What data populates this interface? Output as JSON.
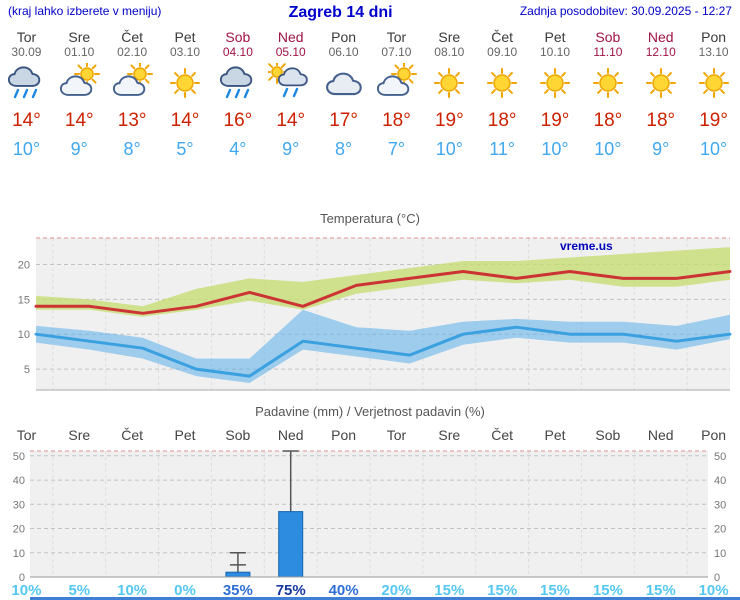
{
  "header": {
    "left_note": "(kraj lahko izberete v meniju)",
    "title": "Zagreb 14 dni",
    "updated": "Zadnja posodobitev: 30.09.2025 - 12:27"
  },
  "watermark": "vreme.us",
  "days": [
    {
      "name": "Tor",
      "date": "30.09",
      "weekend": false,
      "icon": "rain",
      "tmax": "14°",
      "tmin": "10°"
    },
    {
      "name": "Sre",
      "date": "01.10",
      "weekend": false,
      "icon": "partly",
      "tmax": "14°",
      "tmin": "9°"
    },
    {
      "name": "Čet",
      "date": "02.10",
      "weekend": false,
      "icon": "partly",
      "tmax": "13°",
      "tmin": "8°"
    },
    {
      "name": "Pet",
      "date": "03.10",
      "weekend": false,
      "icon": "sun",
      "tmax": "14°",
      "tmin": "5°"
    },
    {
      "name": "Sob",
      "date": "04.10",
      "weekend": true,
      "icon": "rain",
      "tmax": "16°",
      "tmin": "4°"
    },
    {
      "name": "Ned",
      "date": "05.10",
      "weekend": true,
      "icon": "rain-sun",
      "tmax": "14°",
      "tmin": "9°"
    },
    {
      "name": "Pon",
      "date": "06.10",
      "weekend": false,
      "icon": "cloud",
      "tmax": "17°",
      "tmin": "8°"
    },
    {
      "name": "Tor",
      "date": "07.10",
      "weekend": false,
      "icon": "partly",
      "tmax": "18°",
      "tmin": "7°"
    },
    {
      "name": "Sre",
      "date": "08.10",
      "weekend": false,
      "icon": "sun",
      "tmax": "19°",
      "tmin": "10°"
    },
    {
      "name": "Čet",
      "date": "09.10",
      "weekend": false,
      "icon": "sun",
      "tmax": "18°",
      "tmin": "11°"
    },
    {
      "name": "Pet",
      "date": "10.10",
      "weekend": false,
      "icon": "sun",
      "tmax": "19°",
      "tmin": "10°"
    },
    {
      "name": "Sob",
      "date": "11.10",
      "weekend": true,
      "icon": "sun",
      "tmax": "18°",
      "tmin": "10°"
    },
    {
      "name": "Ned",
      "date": "12.10",
      "weekend": true,
      "icon": "sun",
      "tmax": "18°",
      "tmin": "9°"
    },
    {
      "name": "Pon",
      "date": "13.10",
      "weekend": false,
      "icon": "sun",
      "tmax": "19°",
      "tmin": "10°"
    }
  ],
  "chart_data": [
    {
      "type": "area",
      "title": "Temperatura (°C)",
      "x_labels": [
        "Tor",
        "Sre",
        "Čet",
        "Pet",
        "Sob",
        "Ned",
        "Pon",
        "Tor",
        "Sre",
        "Čet",
        "Pet",
        "Sob",
        "Ned",
        "Pon"
      ],
      "ylim": [
        2,
        23.8
      ],
      "yticks": [
        5,
        10,
        15,
        20
      ],
      "grid": true,
      "series": [
        {
          "name": "temp-max",
          "color": "#cc3333",
          "values": [
            14,
            14,
            13,
            14,
            16,
            14,
            17,
            18,
            19,
            18,
            19,
            18,
            18,
            19
          ]
        },
        {
          "name": "temp-min",
          "color": "#3aa0e0",
          "values": [
            10,
            9,
            8,
            5,
            4,
            9,
            8,
            7,
            10,
            11,
            10,
            10,
            9,
            10
          ]
        }
      ],
      "bands": [
        {
          "name": "max-range",
          "color": "rgba(197,220,110,0.75)",
          "top": [
            15.5,
            15,
            14,
            16.5,
            18,
            17.5,
            18.5,
            19.5,
            20.5,
            20.5,
            21,
            21.5,
            22,
            22.5
          ],
          "bottom": [
            13.5,
            13.5,
            12.5,
            13.5,
            14.8,
            13.5,
            15.8,
            16.8,
            17.8,
            17.3,
            17.8,
            16.8,
            16.8,
            17.8
          ]
        },
        {
          "name": "min-range",
          "color": "rgba(90,175,235,0.55)",
          "top": [
            11.2,
            10.5,
            9.5,
            6.5,
            6.5,
            13.5,
            11,
            10.5,
            11.8,
            12.2,
            11.8,
            11.8,
            11.2,
            12.8
          ],
          "bottom": [
            8.8,
            7.8,
            6.5,
            4,
            3,
            7.8,
            6.8,
            5.8,
            8.5,
            9.5,
            8.8,
            8.8,
            7.8,
            9.3
          ]
        }
      ]
    },
    {
      "type": "bar",
      "title": "Padavine (mm) / Verjetnost padavin (%)",
      "categories": [
        "Tor",
        "Sre",
        "Čet",
        "Pet",
        "Sob",
        "Ned",
        "Pon",
        "Tor",
        "Sre",
        "Čet",
        "Pet",
        "Sob",
        "Ned",
        "Pon"
      ],
      "values": [
        0,
        0,
        0,
        0,
        2,
        27,
        0,
        0,
        0,
        0,
        0,
        0,
        0,
        0
      ],
      "whisker_max": [
        0,
        0,
        0,
        0,
        10,
        52,
        0,
        0,
        0,
        0,
        0,
        0,
        0,
        0
      ],
      "whisker_caps": [
        [],
        [],
        [],
        [],
        [
          5,
          10
        ],
        [
          52
        ],
        [],
        [],
        [],
        [],
        [],
        [],
        [],
        []
      ],
      "probabilities": [
        "10%",
        "5%",
        "10%",
        "0%",
        "35%",
        "75%",
        "40%",
        "20%",
        "15%",
        "15%",
        "15%",
        "15%",
        "15%",
        "10%"
      ],
      "ylim": [
        0,
        52
      ],
      "yticks": [
        0,
        10,
        20,
        30,
        40,
        50
      ],
      "bar_color": "#2d8ce0",
      "bar_border": "#1565b0",
      "prob_color_low": "#54c8f2",
      "prob_color_mid": "#2e6fd4",
      "prob_color_high": "#17379e"
    }
  ]
}
